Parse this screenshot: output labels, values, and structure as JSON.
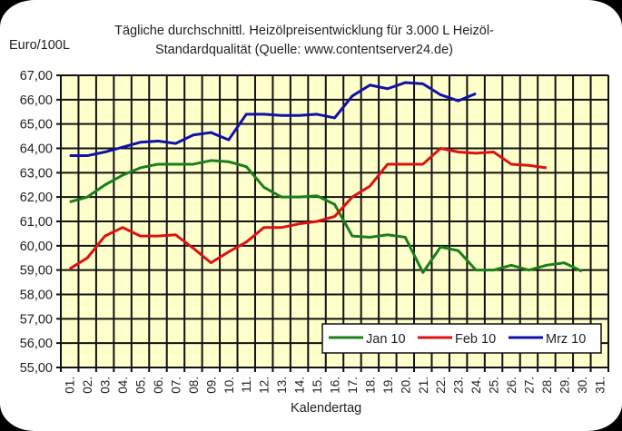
{
  "chart": {
    "title_line1": "Tägliche durchschnittl. Heizölpreisentwicklung für 3.000 L Heizöl-",
    "title_line2": "Standardqualität (Quelle: www.contentserver24.de)",
    "ylabel": "Euro/100L",
    "xlabel": "Kalendertag"
  },
  "chart_data": {
    "type": "line",
    "title": "Tägliche durchschnittl. Heizölpreisentwicklung für 3.000 L Heizöl-Standardqualität (Quelle: www.contentserver24.de)",
    "xlabel": "Kalendertag",
    "ylabel": "Euro/100L",
    "ylim": [
      55,
      67
    ],
    "yticks": [
      "55,00",
      "56,00",
      "57,00",
      "58,00",
      "59,00",
      "60,00",
      "61,00",
      "62,00",
      "63,00",
      "64,00",
      "65,00",
      "66,00",
      "67,00"
    ],
    "grid": true,
    "legend_position": "lower right, inside plot",
    "plot_background": "#ffffcc",
    "categories": [
      "01.",
      "02.",
      "03.",
      "04.",
      "05.",
      "06.",
      "07.",
      "08.",
      "09.",
      "10.",
      "11.",
      "12.",
      "13.",
      "14.",
      "15.",
      "16.",
      "17.",
      "18.",
      "19.",
      "20.",
      "21.",
      "22.",
      "23.",
      "24.",
      "25.",
      "26.",
      "27.",
      "28.",
      "29.",
      "30.",
      "31."
    ],
    "series": [
      {
        "name": "Jan 10",
        "color": "#1a7f1a",
        "values": [
          61.8,
          62.0,
          62.5,
          62.9,
          63.2,
          63.35,
          63.35,
          63.35,
          63.5,
          63.45,
          63.25,
          62.4,
          62.0,
          62.0,
          62.05,
          61.7,
          60.4,
          60.35,
          60.45,
          60.35,
          58.9,
          59.95,
          59.8,
          59.0,
          59.0,
          59.2,
          59.0,
          59.2,
          59.3,
          58.95
        ]
      },
      {
        "name": "Feb 10",
        "color": "#dd1111",
        "values": [
          59.05,
          59.5,
          60.4,
          60.75,
          60.4,
          60.4,
          60.45,
          59.9,
          59.3,
          59.75,
          60.15,
          60.75,
          60.75,
          60.9,
          61.0,
          61.2,
          62.0,
          62.45,
          63.35,
          63.35,
          63.35,
          64.0,
          63.85,
          63.8,
          63.85,
          63.35,
          63.3,
          63.2
        ]
      },
      {
        "name": "Mrz 10",
        "color": "#1111aa",
        "values": [
          63.7,
          63.7,
          63.85,
          64.05,
          64.25,
          64.3,
          64.2,
          64.55,
          64.65,
          64.35,
          65.4,
          65.4,
          65.35,
          65.35,
          65.4,
          65.25,
          66.15,
          66.6,
          66.45,
          66.7,
          66.65,
          66.2,
          65.95,
          66.25
        ]
      }
    ]
  }
}
